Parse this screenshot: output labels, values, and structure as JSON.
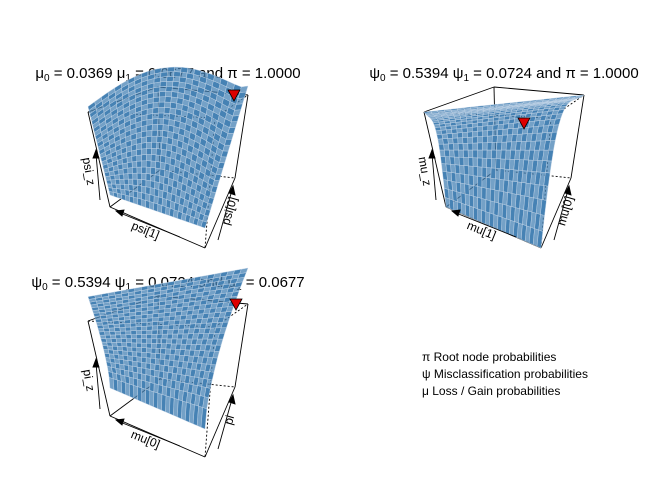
{
  "chart_data": [
    {
      "type": "surface3d",
      "title_parts": [
        {
          "sym": "μ",
          "sub": "0",
          "rest": " = 0.0369 "
        },
        {
          "sym": "μ",
          "sub": "1",
          "rest": " = 0.0677 and "
        },
        {
          "sym": "π",
          "sub": "",
          "rest": " = 1.0000"
        }
      ],
      "xlabel": "psi[1]",
      "ylabel": "psi[0]",
      "zlabel": "psi_z",
      "surface_shape": "ridge",
      "max_marker_color": "#dd0000",
      "surface_color": "#4682b4"
    },
    {
      "type": "surface3d",
      "title_parts": [
        {
          "sym": "ψ",
          "sub": "0",
          "rest": " = 0.5394 "
        },
        {
          "sym": "ψ",
          "sub": "1",
          "rest": " = 0.0724 and "
        },
        {
          "sym": "π",
          "sub": "",
          "rest": " = 1.0000"
        }
      ],
      "xlabel": "mu[1]",
      "ylabel": "mu[0]",
      "zlabel": "mu_z",
      "surface_shape": "dome",
      "max_marker_color": "#dd0000",
      "surface_color": "#4682b4"
    },
    {
      "type": "surface3d",
      "title_parts": [
        {
          "sym": "ψ",
          "sub": "0",
          "rest": " = 0.5394 "
        },
        {
          "sym": "ψ",
          "sub": "1",
          "rest": " = 0.0724 and "
        },
        {
          "sym": "μ",
          "sub": "1",
          "rest": " = 0.0677"
        }
      ],
      "xlabel": "mu[0]",
      "ylabel": "pi",
      "zlabel": "pi_z",
      "surface_shape": "sheet",
      "max_marker_color": "#dd0000",
      "surface_color": "#4682b4"
    }
  ],
  "legend": [
    {
      "sym": "π",
      "text": " Root node probabilities"
    },
    {
      "sym": "ψ",
      "text": " Misclassification probabilities"
    },
    {
      "sym": "μ",
      "text": " Loss / Gain probabilities"
    }
  ]
}
